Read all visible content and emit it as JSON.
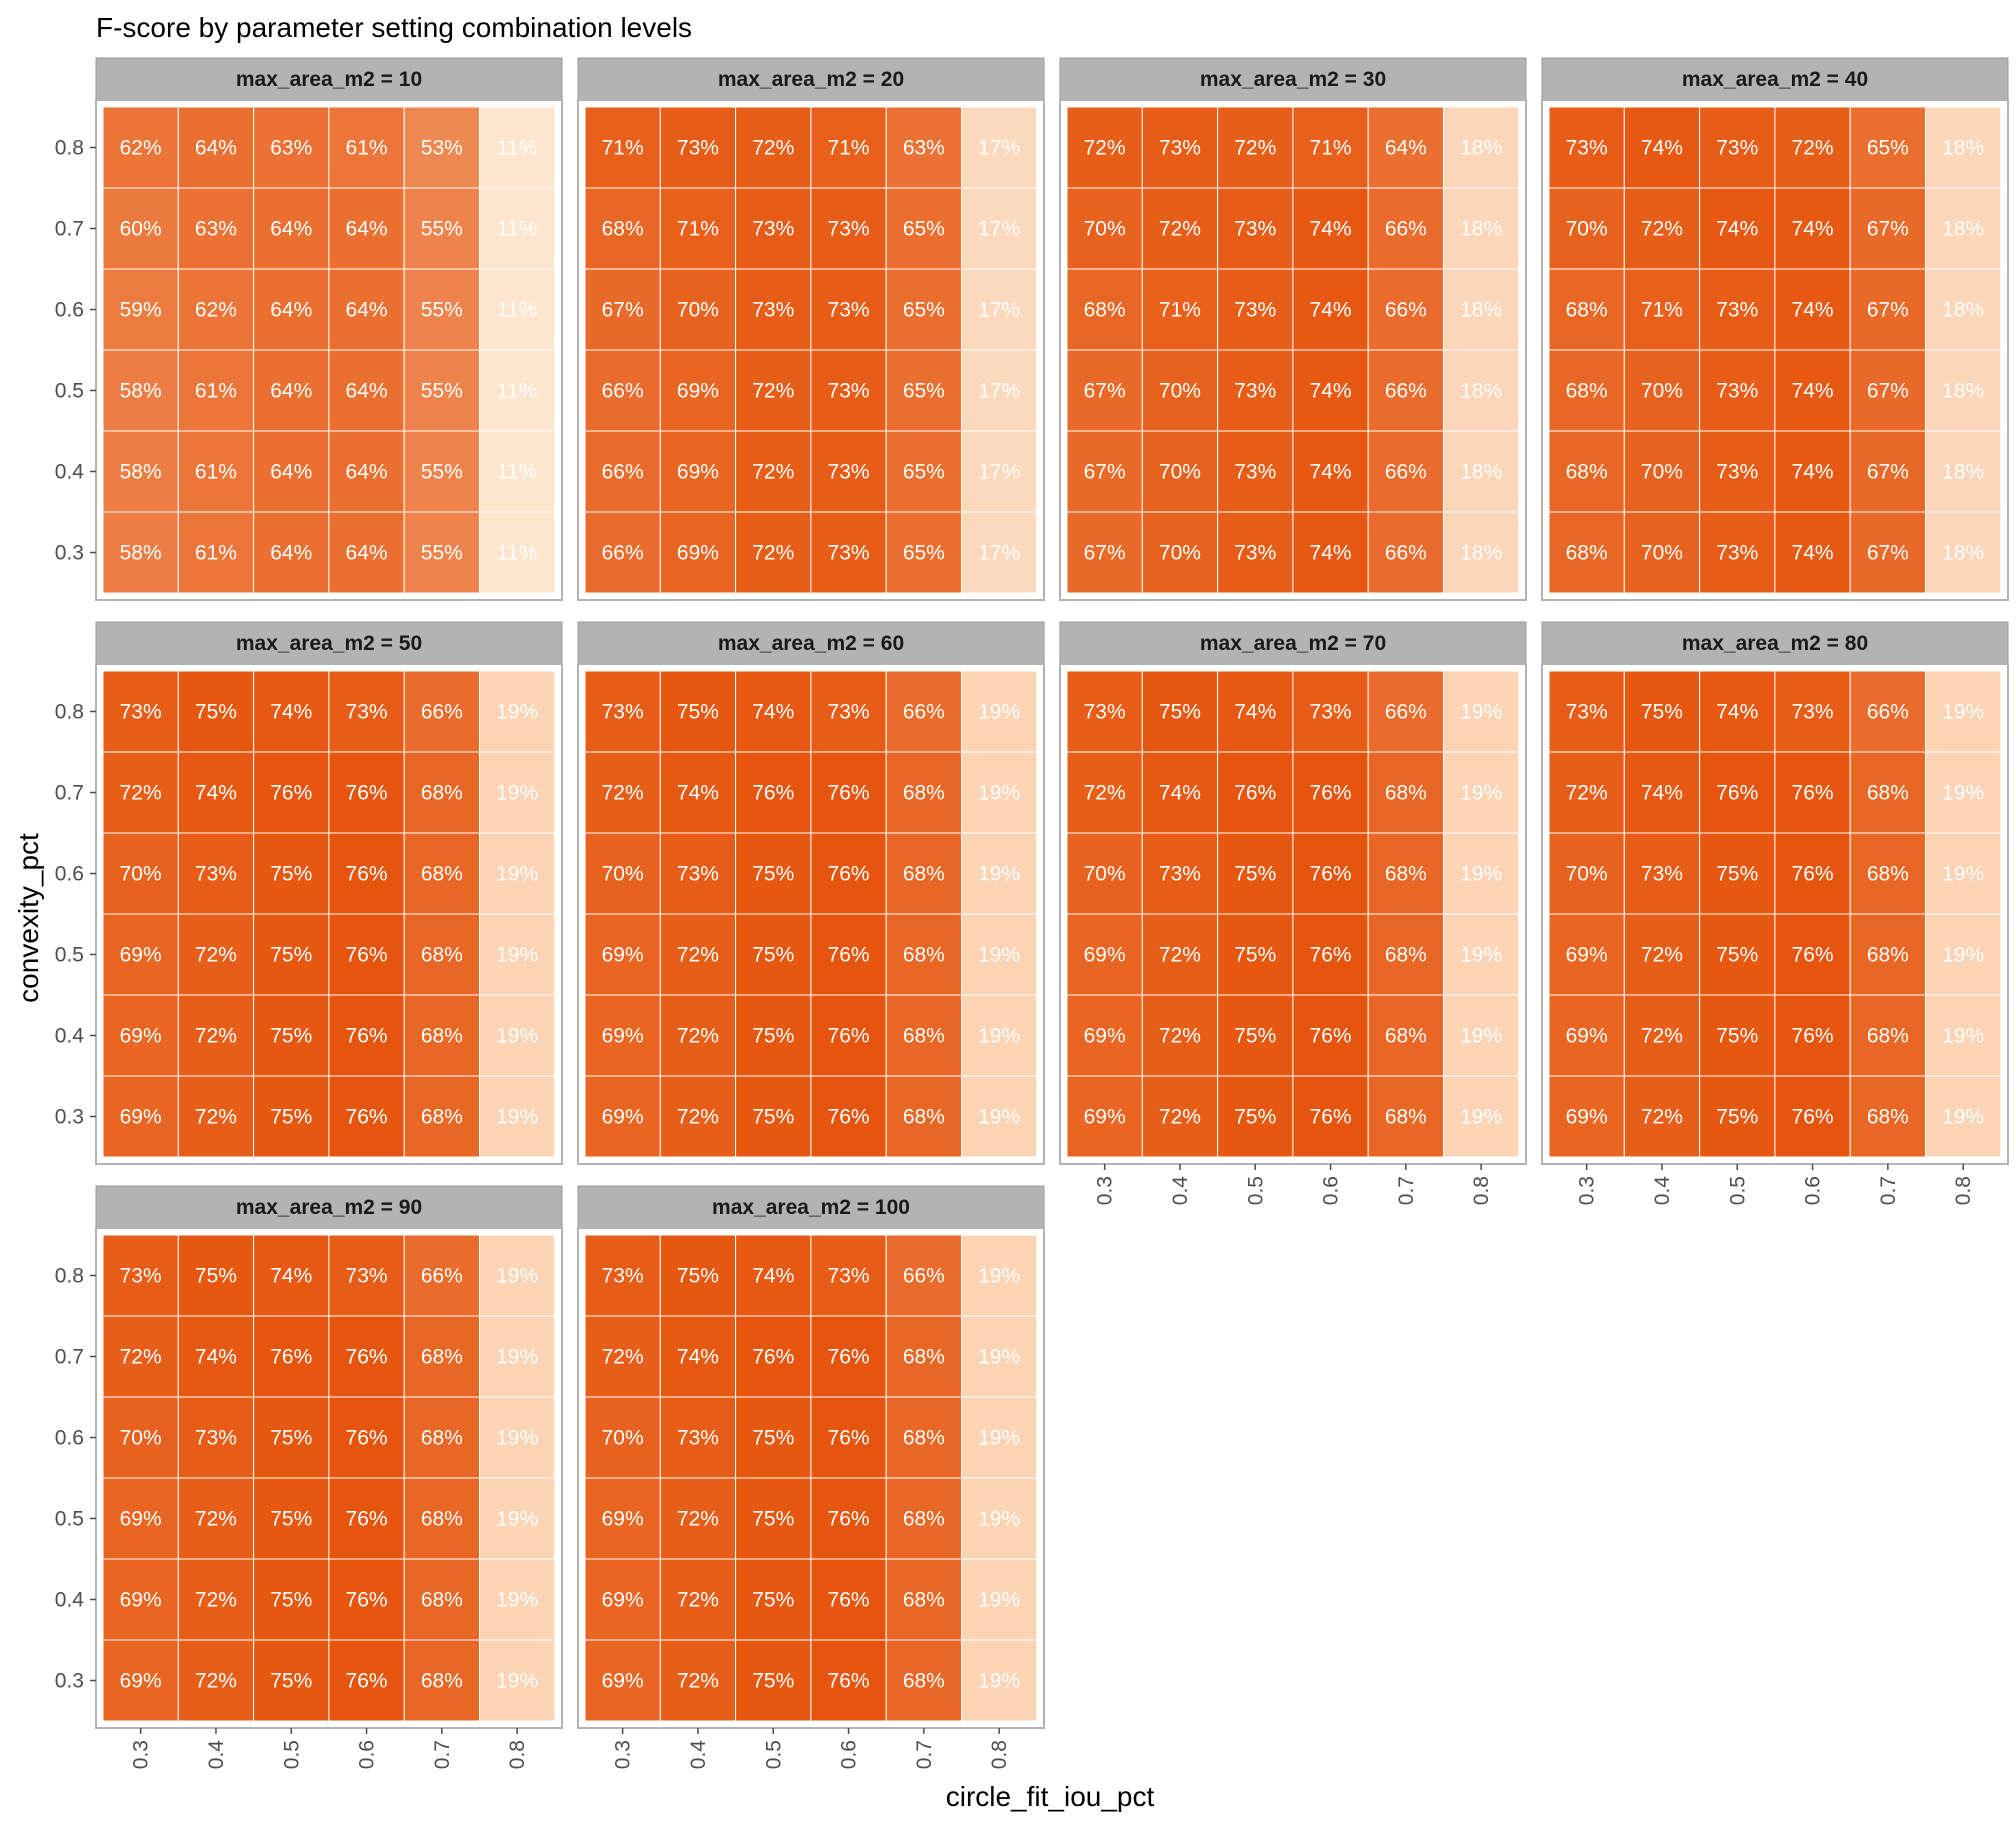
{
  "chart_data": {
    "type": "heatmap",
    "title": "F-score by parameter setting combination levels",
    "xlabel": "circle_fit_iou_pct",
    "ylabel": "convexity_pct",
    "facet_variable": "max_area_m2",
    "x_ticks": [
      "0.3",
      "0.4",
      "0.5",
      "0.6",
      "0.7",
      "0.8"
    ],
    "y_ticks": [
      "0.3",
      "0.4",
      "0.5",
      "0.6",
      "0.7",
      "0.8"
    ],
    "value_format": "percent",
    "color_low": "#fee6ce",
    "color_high": "#e6550d",
    "panels": [
      {
        "label": "max_area_m2 = 10",
        "values": [
          [
            62,
            64,
            63,
            61,
            53,
            11
          ],
          [
            60,
            63,
            64,
            64,
            55,
            11
          ],
          [
            59,
            62,
            64,
            64,
            55,
            11
          ],
          [
            58,
            61,
            64,
            64,
            55,
            11
          ],
          [
            58,
            61,
            64,
            64,
            55,
            11
          ],
          [
            58,
            61,
            64,
            64,
            55,
            11
          ]
        ]
      },
      {
        "label": "max_area_m2 = 20",
        "values": [
          [
            71,
            73,
            72,
            71,
            63,
            17
          ],
          [
            68,
            71,
            73,
            73,
            65,
            17
          ],
          [
            67,
            70,
            73,
            73,
            65,
            17
          ],
          [
            66,
            69,
            72,
            73,
            65,
            17
          ],
          [
            66,
            69,
            72,
            73,
            65,
            17
          ],
          [
            66,
            69,
            72,
            73,
            65,
            17
          ]
        ]
      },
      {
        "label": "max_area_m2 = 30",
        "values": [
          [
            72,
            73,
            72,
            71,
            64,
            18
          ],
          [
            70,
            72,
            73,
            74,
            66,
            18
          ],
          [
            68,
            71,
            73,
            74,
            66,
            18
          ],
          [
            67,
            70,
            73,
            74,
            66,
            18
          ],
          [
            67,
            70,
            73,
            74,
            66,
            18
          ],
          [
            67,
            70,
            73,
            74,
            66,
            18
          ]
        ]
      },
      {
        "label": "max_area_m2 = 40",
        "values": [
          [
            73,
            74,
            73,
            72,
            65,
            18
          ],
          [
            70,
            72,
            74,
            74,
            67,
            18
          ],
          [
            68,
            71,
            73,
            74,
            67,
            18
          ],
          [
            68,
            70,
            73,
            74,
            67,
            18
          ],
          [
            68,
            70,
            73,
            74,
            67,
            18
          ],
          [
            68,
            70,
            73,
            74,
            67,
            18
          ]
        ]
      },
      {
        "label": "max_area_m2 = 50",
        "values": [
          [
            73,
            75,
            74,
            73,
            66,
            19
          ],
          [
            72,
            74,
            76,
            76,
            68,
            19
          ],
          [
            70,
            73,
            75,
            76,
            68,
            19
          ],
          [
            69,
            72,
            75,
            76,
            68,
            19
          ],
          [
            69,
            72,
            75,
            76,
            68,
            19
          ],
          [
            69,
            72,
            75,
            76,
            68,
            19
          ]
        ]
      },
      {
        "label": "max_area_m2 = 60",
        "values": [
          [
            73,
            75,
            74,
            73,
            66,
            19
          ],
          [
            72,
            74,
            76,
            76,
            68,
            19
          ],
          [
            70,
            73,
            75,
            76,
            68,
            19
          ],
          [
            69,
            72,
            75,
            76,
            68,
            19
          ],
          [
            69,
            72,
            75,
            76,
            68,
            19
          ],
          [
            69,
            72,
            75,
            76,
            68,
            19
          ]
        ]
      },
      {
        "label": "max_area_m2 = 70",
        "values": [
          [
            73,
            75,
            74,
            73,
            66,
            19
          ],
          [
            72,
            74,
            76,
            76,
            68,
            19
          ],
          [
            70,
            73,
            75,
            76,
            68,
            19
          ],
          [
            69,
            72,
            75,
            76,
            68,
            19
          ],
          [
            69,
            72,
            75,
            76,
            68,
            19
          ],
          [
            69,
            72,
            75,
            76,
            68,
            19
          ]
        ]
      },
      {
        "label": "max_area_m2 = 80",
        "values": [
          [
            73,
            75,
            74,
            73,
            66,
            19
          ],
          [
            72,
            74,
            76,
            76,
            68,
            19
          ],
          [
            70,
            73,
            75,
            76,
            68,
            19
          ],
          [
            69,
            72,
            75,
            76,
            68,
            19
          ],
          [
            69,
            72,
            75,
            76,
            68,
            19
          ],
          [
            69,
            72,
            75,
            76,
            68,
            19
          ]
        ]
      },
      {
        "label": "max_area_m2 = 90",
        "values": [
          [
            73,
            75,
            74,
            73,
            66,
            19
          ],
          [
            72,
            74,
            76,
            76,
            68,
            19
          ],
          [
            70,
            73,
            75,
            76,
            68,
            19
          ],
          [
            69,
            72,
            75,
            76,
            68,
            19
          ],
          [
            69,
            72,
            75,
            76,
            68,
            19
          ],
          [
            69,
            72,
            75,
            76,
            68,
            19
          ]
        ]
      },
      {
        "label": "max_area_m2 = 100",
        "values": [
          [
            73,
            75,
            74,
            73,
            66,
            19
          ],
          [
            72,
            74,
            76,
            76,
            68,
            19
          ],
          [
            70,
            73,
            75,
            76,
            68,
            19
          ],
          [
            69,
            72,
            75,
            76,
            68,
            19
          ],
          [
            69,
            72,
            75,
            76,
            68,
            19
          ],
          [
            69,
            72,
            75,
            76,
            68,
            19
          ]
        ]
      }
    ]
  }
}
